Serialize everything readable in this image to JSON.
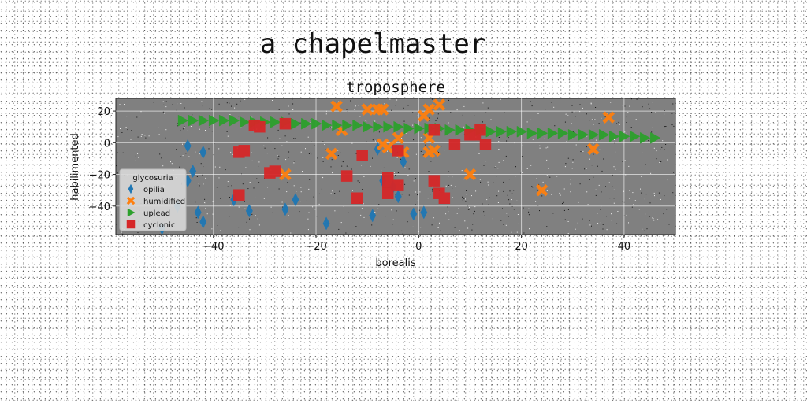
{
  "suptitle": "a chapelmaster",
  "chart_data": {
    "type": "scatter",
    "title": "troposphere",
    "xlabel": "borealis",
    "ylabel": "habilimented",
    "xlim": [
      -59,
      50
    ],
    "ylim": [
      -58,
      28
    ],
    "xticks": [
      -40,
      -20,
      0,
      20,
      40
    ],
    "yticks": [
      -40,
      -20,
      0,
      20
    ],
    "grid": true,
    "legend": {
      "title": "glycosuria",
      "placement": "lower-left"
    },
    "series": [
      {
        "name": "opilia",
        "color": "#1f77b4",
        "marker": "thin_diamond",
        "points": [
          [
            -45,
            -2
          ],
          [
            -42,
            -6
          ],
          [
            -44,
            -18
          ],
          [
            -45,
            -24
          ],
          [
            -43,
            -44
          ],
          [
            -42,
            -50
          ],
          [
            -36,
            -36
          ],
          [
            -33,
            -43
          ],
          [
            -26,
            -42
          ],
          [
            -24,
            -36
          ],
          [
            -18,
            -51
          ],
          [
            -9,
            -46
          ],
          [
            -8,
            -4
          ],
          [
            -7,
            -24
          ],
          [
            -5,
            -28
          ],
          [
            -4,
            -34
          ],
          [
            -3,
            -12
          ],
          [
            -1,
            -45
          ],
          [
            1,
            -44
          ],
          [
            -50,
            -54
          ],
          [
            -47,
            -40
          ]
        ]
      },
      {
        "name": "humidified",
        "color": "#ff7f0e",
        "marker": "X",
        "points": [
          [
            -16,
            23
          ],
          [
            -8,
            21
          ],
          [
            -10,
            21
          ],
          [
            -7,
            21
          ],
          [
            2,
            21
          ],
          [
            4,
            24
          ],
          [
            1,
            17
          ],
          [
            -15,
            8
          ],
          [
            -4,
            3
          ],
          [
            2,
            3
          ],
          [
            -7,
            -1
          ],
          [
            -6,
            -3
          ],
          [
            -17,
            -7
          ],
          [
            -3,
            -6
          ],
          [
            2,
            -6
          ],
          [
            3,
            -5
          ],
          [
            10,
            -20
          ],
          [
            -26,
            -20
          ],
          [
            24,
            -30
          ],
          [
            34,
            -4
          ],
          [
            37,
            16
          ]
        ]
      },
      {
        "name": "uplead",
        "color": "#2ca02c",
        "marker": "triangle_right",
        "points": [
          [
            -46,
            14
          ],
          [
            -44,
            14
          ],
          [
            -42,
            14
          ],
          [
            -40,
            14
          ],
          [
            -38,
            14
          ],
          [
            -36,
            14
          ],
          [
            -34,
            13
          ],
          [
            -32,
            13
          ],
          [
            -30,
            13
          ],
          [
            -28,
            13
          ],
          [
            -26,
            13
          ],
          [
            -24,
            12
          ],
          [
            -22,
            12
          ],
          [
            -20,
            12
          ],
          [
            -18,
            11
          ],
          [
            -16,
            11
          ],
          [
            -14,
            11
          ],
          [
            -12,
            11
          ],
          [
            -10,
            10
          ],
          [
            -8,
            10
          ],
          [
            -6,
            10
          ],
          [
            -4,
            10
          ],
          [
            -2,
            9
          ],
          [
            0,
            9
          ],
          [
            2,
            9
          ],
          [
            4,
            9
          ],
          [
            6,
            8
          ],
          [
            8,
            8
          ],
          [
            10,
            8
          ],
          [
            12,
            8
          ],
          [
            14,
            7
          ],
          [
            16,
            7
          ],
          [
            18,
            7
          ],
          [
            20,
            7
          ],
          [
            22,
            6
          ],
          [
            24,
            6
          ],
          [
            26,
            6
          ],
          [
            28,
            6
          ],
          [
            30,
            5
          ],
          [
            32,
            5
          ],
          [
            34,
            5
          ],
          [
            36,
            5
          ],
          [
            38,
            4
          ],
          [
            40,
            4
          ],
          [
            42,
            4
          ],
          [
            44,
            3
          ],
          [
            46,
            3
          ]
        ]
      },
      {
        "name": "cyclonic",
        "color": "#d62728",
        "marker": "s",
        "points": [
          [
            -32,
            11
          ],
          [
            -31,
            10
          ],
          [
            -26,
            12
          ],
          [
            -35,
            -6
          ],
          [
            -34,
            -5
          ],
          [
            -29,
            -19
          ],
          [
            -28,
            -18
          ],
          [
            -35,
            -33
          ],
          [
            -14,
            -21
          ],
          [
            -11,
            -8
          ],
          [
            -12,
            -35
          ],
          [
            -6,
            -22
          ],
          [
            -6,
            -25
          ],
          [
            -6,
            -32
          ],
          [
            -4,
            -27
          ],
          [
            -4,
            -5
          ],
          [
            3,
            -24
          ],
          [
            3,
            8
          ],
          [
            4,
            -32
          ],
          [
            5,
            -35
          ],
          [
            7,
            -1
          ],
          [
            10,
            5
          ],
          [
            11,
            5
          ],
          [
            12,
            8
          ],
          [
            13,
            -1
          ]
        ]
      }
    ]
  }
}
